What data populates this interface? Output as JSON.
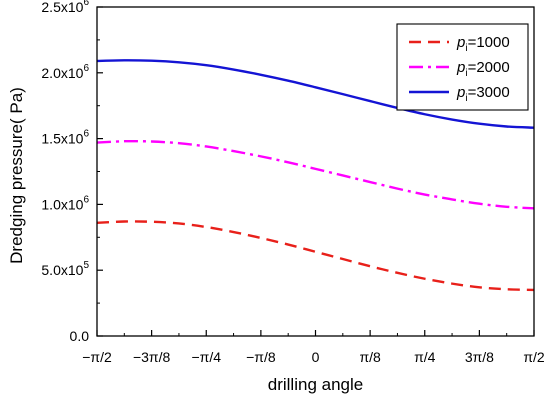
{
  "chart_data": {
    "type": "line",
    "xlabel": "drilling angle",
    "ylabel": "Dredging pressure( Pa)",
    "xlim": [
      -1.5708,
      1.5708
    ],
    "ylim": [
      0,
      2500000
    ],
    "x_ticks": [
      {
        "value": -1.5708,
        "label": "−π/2"
      },
      {
        "value": -1.1781,
        "label": "−3π/8"
      },
      {
        "value": -0.7854,
        "label": "−π/4"
      },
      {
        "value": -0.3927,
        "label": "−π/8"
      },
      {
        "value": 0,
        "label": "0"
      },
      {
        "value": 0.3927,
        "label": "π/8"
      },
      {
        "value": 0.7854,
        "label": "π/4"
      },
      {
        "value": 1.1781,
        "label": "3π/8"
      },
      {
        "value": 1.5708,
        "label": "π/2"
      }
    ],
    "y_ticks": [
      {
        "value": 0,
        "base": "0.0",
        "exp": ""
      },
      {
        "value": 500000,
        "base": "5.0x10",
        "exp": "5"
      },
      {
        "value": 1000000,
        "base": "1.0x10",
        "exp": "6"
      },
      {
        "value": 1500000,
        "base": "1.5x10",
        "exp": "6"
      },
      {
        "value": 2000000,
        "base": "2.0x10",
        "exp": "6"
      },
      {
        "value": 2500000,
        "base": "2.5x10",
        "exp": "6"
      }
    ],
    "grid": false,
    "legend_position": "top-right",
    "x": [
      -1.5708,
      -1.3744,
      -1.1781,
      -0.9817,
      -0.7854,
      -0.589,
      -0.3927,
      -0.1963,
      0,
      0.1963,
      0.3927,
      0.589,
      0.7854,
      0.9817,
      1.1781,
      1.3744,
      1.5708
    ],
    "series": [
      {
        "name": "p",
        "name_sub": "i",
        "name_suffix": "=1000",
        "color": "#e8201a",
        "dash": "12,7",
        "values": [
          860000,
          870000,
          868000,
          855000,
          828000,
          790000,
          745000,
          695000,
          640000,
          585000,
          530000,
          480000,
          435000,
          398000,
          370000,
          355000,
          350000
        ]
      },
      {
        "name": "p",
        "name_sub": "i",
        "name_suffix": "=2000",
        "color": "#ff00ff",
        "dash": "14,5,3,5",
        "values": [
          1470000,
          1480000,
          1478000,
          1465000,
          1440000,
          1405000,
          1365000,
          1320000,
          1270000,
          1220000,
          1170000,
          1120000,
          1075000,
          1038000,
          1005000,
          982000,
          970000
        ]
      },
      {
        "name": "p",
        "name_sub": "i",
        "name_suffix": "=3000",
        "color": "#1414d4",
        "dash": "",
        "values": [
          2090000,
          2095000,
          2092000,
          2080000,
          2058000,
          2025000,
          1985000,
          1940000,
          1890000,
          1838000,
          1785000,
          1733000,
          1685000,
          1645000,
          1613000,
          1592000,
          1583000
        ]
      }
    ]
  }
}
